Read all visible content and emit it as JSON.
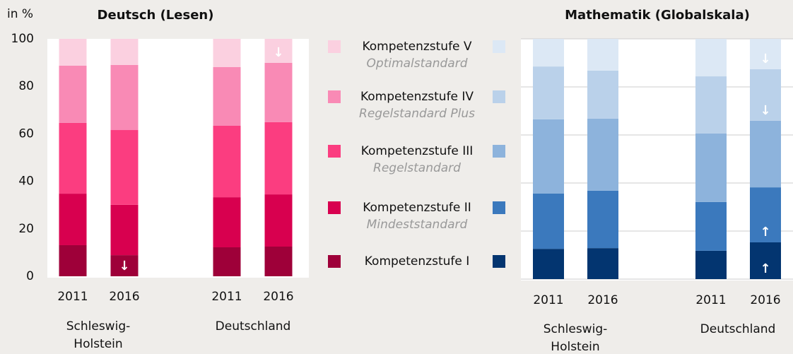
{
  "chart_data": [
    {
      "type": "stacked-bar",
      "title": "Deutsch (Lesen)",
      "ylabel": "in %",
      "categories": [
        "2011",
        "2016",
        "2011",
        "2016"
      ],
      "groups": [
        [
          "Schleswig-",
          "Holstein"
        ],
        [
          "Deutschland"
        ]
      ],
      "ylim": [
        0,
        100
      ],
      "yticks": [
        0,
        20,
        40,
        60,
        80,
        100
      ],
      "grid": false,
      "tick_labels": true,
      "series": [
        {
          "name": "Kompetenzstufe I",
          "color": "#9e0039",
          "values": [
            13.1,
            8.9,
            12.2,
            12.5
          ],
          "arrows": [
            null,
            "↓",
            null,
            null
          ]
        },
        {
          "name": "Kompetenzstufe II",
          "subtitle": "Mindeststandard",
          "color": "#d8004f",
          "values": [
            21.7,
            21.2,
            21.1,
            22.0
          ],
          "arrows": [
            null,
            null,
            null,
            null
          ]
        },
        {
          "name": "Kompetenzstufe III",
          "subtitle": "Regelstandard",
          "color": "#fb3d80",
          "values": [
            29.8,
            31.5,
            30.1,
            30.4
          ],
          "arrows": [
            null,
            null,
            null,
            null
          ]
        },
        {
          "name": "Kompetenzstufe IV",
          "subtitle": "Regelstandard Plus",
          "color": "#f98ab5",
          "values": [
            24.1,
            27.4,
            24.7,
            25.0
          ],
          "arrows": [
            null,
            null,
            null,
            null
          ]
        },
        {
          "name": "Kompetenzstufe V",
          "subtitle": "Optimalstandard",
          "color": "#fbd0e0",
          "values": [
            11.3,
            11.0,
            11.9,
            10.1
          ],
          "arrows": [
            null,
            null,
            null,
            "↓"
          ]
        }
      ]
    },
    {
      "type": "stacked-bar",
      "title": "Mathematik (Globalskala)",
      "categories": [
        "2011",
        "2016",
        "2011",
        "2016"
      ],
      "groups": [
        [
          "Schleswig-",
          "Holstein"
        ],
        [
          "Deutschland"
        ]
      ],
      "ylim": [
        0,
        100
      ],
      "yticks": [
        0,
        20,
        40,
        60,
        80,
        100
      ],
      "grid": true,
      "tick_labels": false,
      "series": [
        {
          "color": "#033570",
          "values": [
            12.6,
            12.9,
            11.8,
            15.3
          ],
          "arrows": [
            null,
            null,
            null,
            "↑"
          ]
        },
        {
          "color": "#3b79bd",
          "values": [
            23.0,
            23.9,
            20.3,
            22.9
          ],
          "arrows": [
            null,
            null,
            null,
            "↑"
          ]
        },
        {
          "color": "#8db3dc",
          "values": [
            30.9,
            30.0,
            28.5,
            27.7
          ],
          "arrows": [
            null,
            null,
            null,
            null
          ]
        },
        {
          "color": "#bad1ea",
          "values": [
            22.0,
            20.0,
            23.8,
            21.5
          ],
          "arrows": [
            null,
            null,
            null,
            "↓"
          ]
        },
        {
          "color": "#dce8f5",
          "values": [
            11.5,
            13.2,
            15.6,
            12.6
          ],
          "arrows": [
            null,
            null,
            null,
            "↓"
          ]
        }
      ]
    }
  ]
}
